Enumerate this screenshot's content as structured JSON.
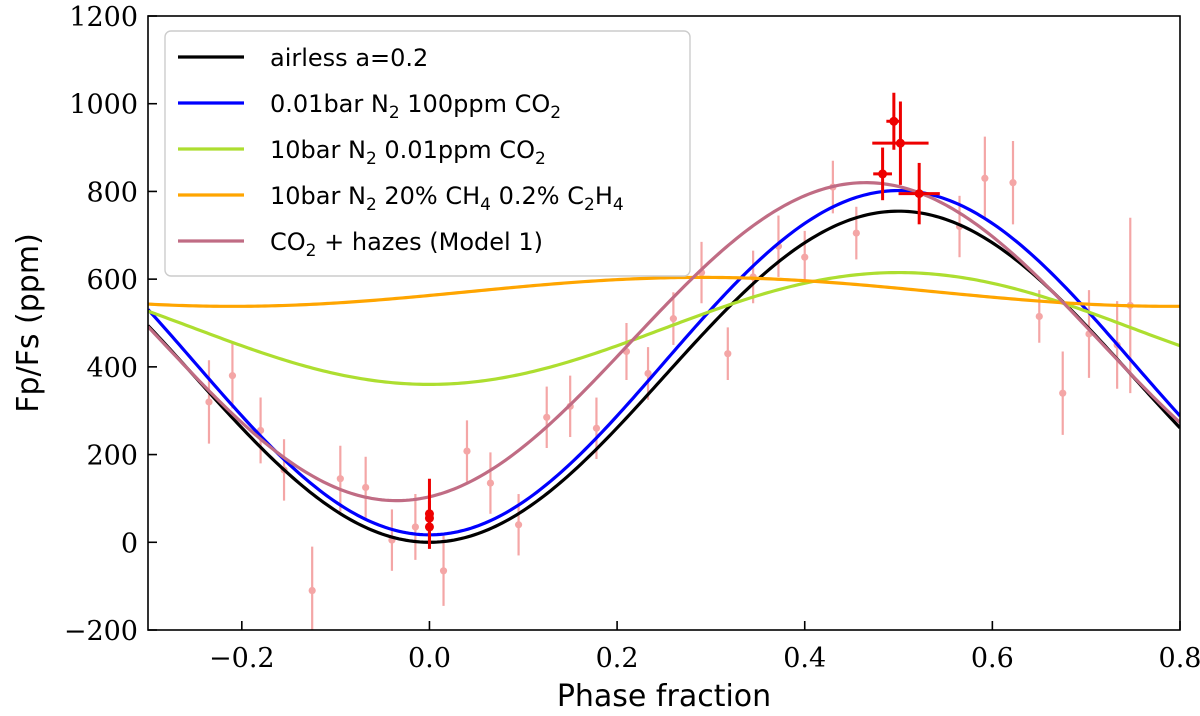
{
  "chart_data": {
    "type": "line",
    "xlabel": "Phase fraction",
    "ylabel": "Fp/Fs (ppm)",
    "xlim": [
      -0.3,
      0.8
    ],
    "ylim": [
      -200,
      1200
    ],
    "xticks": [
      -0.2,
      0.0,
      0.2,
      0.4,
      0.6,
      0.8
    ],
    "xtick_labels": [
      "−0.2",
      "0.0",
      "0.2",
      "0.4",
      "0.6",
      "0.8"
    ],
    "yticks": [
      -200,
      0,
      200,
      400,
      600,
      800,
      1000,
      1200
    ],
    "ytick_labels": [
      "−200",
      "0",
      "200",
      "400",
      "600",
      "800",
      "1000",
      "1200"
    ],
    "legend_position": "top-left",
    "series": [
      {
        "name": "airless a=0.2",
        "label_parts": [
          [
            "airless a=0.2",
            ""
          ]
        ],
        "color": "#000000",
        "model": {
          "amp": 755,
          "min": 0,
          "offset": 0,
          "peak": 0.5
        }
      },
      {
        "name": "0.01bar N2 100ppm CO2",
        "label_parts": [
          [
            "0.01bar N",
            ""
          ],
          [
            "2",
            "sub"
          ],
          [
            " 100ppm CO",
            ""
          ],
          [
            "2",
            "sub"
          ]
        ],
        "color": "#0000ff",
        "model": {
          "amp": 785,
          "min": 17,
          "offset": 0,
          "peak": 0.5
        }
      },
      {
        "name": "10bar N2 0.01ppm CO2",
        "label_parts": [
          [
            "10bar N",
            ""
          ],
          [
            "2",
            "sub"
          ],
          [
            " 0.01ppm CO",
            ""
          ],
          [
            "2",
            "sub"
          ]
        ],
        "color": "#adde30",
        "model": {
          "amp": 255,
          "min": 360,
          "offset": 0,
          "peak": 0.5
        }
      },
      {
        "name": "10bar N2 20% CH4 0.2% C2H4",
        "label_parts": [
          [
            "10bar N",
            ""
          ],
          [
            "2",
            "sub"
          ],
          [
            " 20% CH",
            ""
          ],
          [
            "4",
            "sub"
          ],
          [
            " 0.2% C",
            ""
          ],
          [
            "2",
            "sub"
          ],
          [
            "H",
            ""
          ],
          [
            "4",
            "sub"
          ]
        ],
        "color": "#ffa500",
        "model": {
          "amp": 66,
          "min": 538,
          "offset": 0,
          "peak": 0.29
        }
      },
      {
        "name": "CO2 + hazes (Model 1)",
        "label_parts": [
          [
            "CO",
            ""
          ],
          [
            "2",
            "sub"
          ],
          [
            " + hazes (Model 1)",
            ""
          ]
        ],
        "color": "#c06c84",
        "model": {
          "amp": 725,
          "min": 95,
          "offset": 0,
          "peak": 0.465
        }
      }
    ],
    "observations_faint": {
      "color": "#f4a6a6",
      "points": [
        {
          "x": -0.235,
          "y": 320,
          "err": 95
        },
        {
          "x": -0.21,
          "y": 380,
          "err": 75
        },
        {
          "x": -0.18,
          "y": 255,
          "err": 75
        },
        {
          "x": -0.155,
          "y": 165,
          "err": 70
        },
        {
          "x": -0.125,
          "y": -110,
          "err": 100
        },
        {
          "x": -0.095,
          "y": 145,
          "err": 75
        },
        {
          "x": -0.068,
          "y": 125,
          "err": 70
        },
        {
          "x": -0.04,
          "y": 5,
          "err": 70
        },
        {
          "x": -0.015,
          "y": 35,
          "err": 75
        },
        {
          "x": 0.015,
          "y": -65,
          "err": 80
        },
        {
          "x": 0.04,
          "y": 208,
          "err": 70
        },
        {
          "x": 0.065,
          "y": 135,
          "err": 70
        },
        {
          "x": 0.095,
          "y": 40,
          "err": 70
        },
        {
          "x": 0.125,
          "y": 285,
          "err": 70
        },
        {
          "x": 0.15,
          "y": 310,
          "err": 70
        },
        {
          "x": 0.178,
          "y": 260,
          "err": 70
        },
        {
          "x": 0.21,
          "y": 435,
          "err": 65
        },
        {
          "x": 0.233,
          "y": 385,
          "err": 60
        },
        {
          "x": 0.26,
          "y": 510,
          "err": 60
        },
        {
          "x": 0.29,
          "y": 615,
          "err": 70
        },
        {
          "x": 0.318,
          "y": 430,
          "err": 60
        },
        {
          "x": 0.345,
          "y": 605,
          "err": 60
        },
        {
          "x": 0.372,
          "y": 675,
          "err": 70
        },
        {
          "x": 0.4,
          "y": 650,
          "err": 60
        },
        {
          "x": 0.43,
          "y": 810,
          "err": 60
        },
        {
          "x": 0.455,
          "y": 705,
          "err": 60
        },
        {
          "x": 0.565,
          "y": 720,
          "err": 70
        },
        {
          "x": 0.592,
          "y": 830,
          "err": 95
        },
        {
          "x": 0.622,
          "y": 820,
          "err": 95
        },
        {
          "x": 0.65,
          "y": 515,
          "err": 60
        },
        {
          "x": 0.675,
          "y": 340,
          "err": 95
        },
        {
          "x": 0.703,
          "y": 475,
          "err": 100
        },
        {
          "x": 0.733,
          "y": 450,
          "err": 100
        },
        {
          "x": 0.747,
          "y": 540,
          "err": 200
        }
      ]
    },
    "observations_bold": {
      "color": "#ee0000",
      "points": [
        {
          "x": 0.0,
          "y": 65,
          "yerr": 80,
          "xerr": 0
        },
        {
          "x": 0.0,
          "y": 55,
          "yerr": 40,
          "xerr": 0
        },
        {
          "x": 0.0,
          "y": 35,
          "yerr": 30,
          "xerr": 0
        },
        {
          "x": 0.483,
          "y": 840,
          "yerr": 60,
          "xerr": 0.01
        },
        {
          "x": 0.495,
          "y": 960,
          "yerr": 65,
          "xerr": 0.008
        },
        {
          "x": 0.502,
          "y": 910,
          "yerr": 95,
          "xerr": 0.03
        },
        {
          "x": 0.522,
          "y": 795,
          "yerr": 70,
          "xerr": 0.022
        }
      ]
    }
  }
}
